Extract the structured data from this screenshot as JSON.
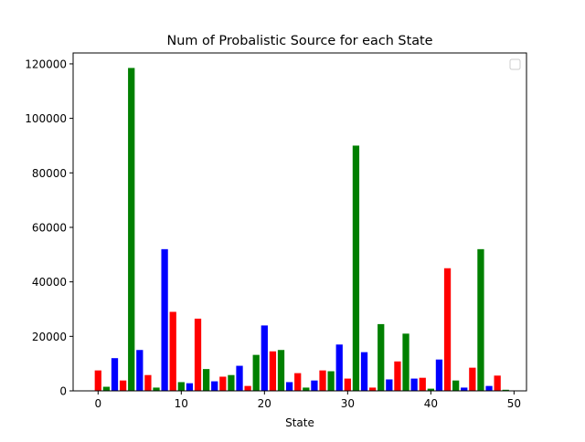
{
  "chart_data": {
    "type": "bar",
    "title": "Num of Probalistic Source for each State",
    "xlabel": "State",
    "ylabel": "",
    "xlim": [
      -3,
      51.5
    ],
    "ylim": [
      0,
      124000
    ],
    "xticks": [
      0,
      10,
      20,
      30,
      40,
      50
    ],
    "yticks": [
      0,
      20000,
      40000,
      60000,
      80000,
      100000,
      120000
    ],
    "xtick_labels": [
      "0",
      "10",
      "20",
      "30",
      "40",
      "50"
    ],
    "ytick_labels": [
      "0",
      "20000",
      "40000",
      "60000",
      "80000",
      "100000",
      "120000"
    ],
    "grid": false,
    "legend": {
      "position": "top-right",
      "entries": []
    },
    "bar_width": 0.8,
    "color_cycle": [
      "#ff0000",
      "#008000",
      "#0000ff"
    ],
    "x": [
      0,
      1,
      2,
      3,
      4,
      5,
      6,
      7,
      8,
      9,
      10,
      11,
      12,
      13,
      14,
      15,
      16,
      17,
      18,
      19,
      20,
      21,
      22,
      23,
      24,
      25,
      26,
      27,
      28,
      29,
      30,
      31,
      32,
      33,
      34,
      35,
      36,
      37,
      38,
      39,
      40,
      41,
      42,
      43,
      44,
      45,
      46,
      47,
      48,
      49
    ],
    "values": [
      7500,
      1500,
      12000,
      3800,
      118500,
      15000,
      5800,
      1200,
      52000,
      29000,
      3200,
      2800,
      26500,
      8000,
      3500,
      5200,
      5800,
      9200,
      1800,
      13200,
      24000,
      14500,
      15000,
      3200,
      6500,
      1200,
      3800,
      7500,
      7200,
      17000,
      4500,
      90000,
      14200,
      1200,
      24500,
      4200,
      10800,
      21000,
      4500,
      4800,
      800,
      11500,
      45000,
      3800,
      1200,
      8500,
      52000,
      1800,
      5600,
      400
    ]
  }
}
